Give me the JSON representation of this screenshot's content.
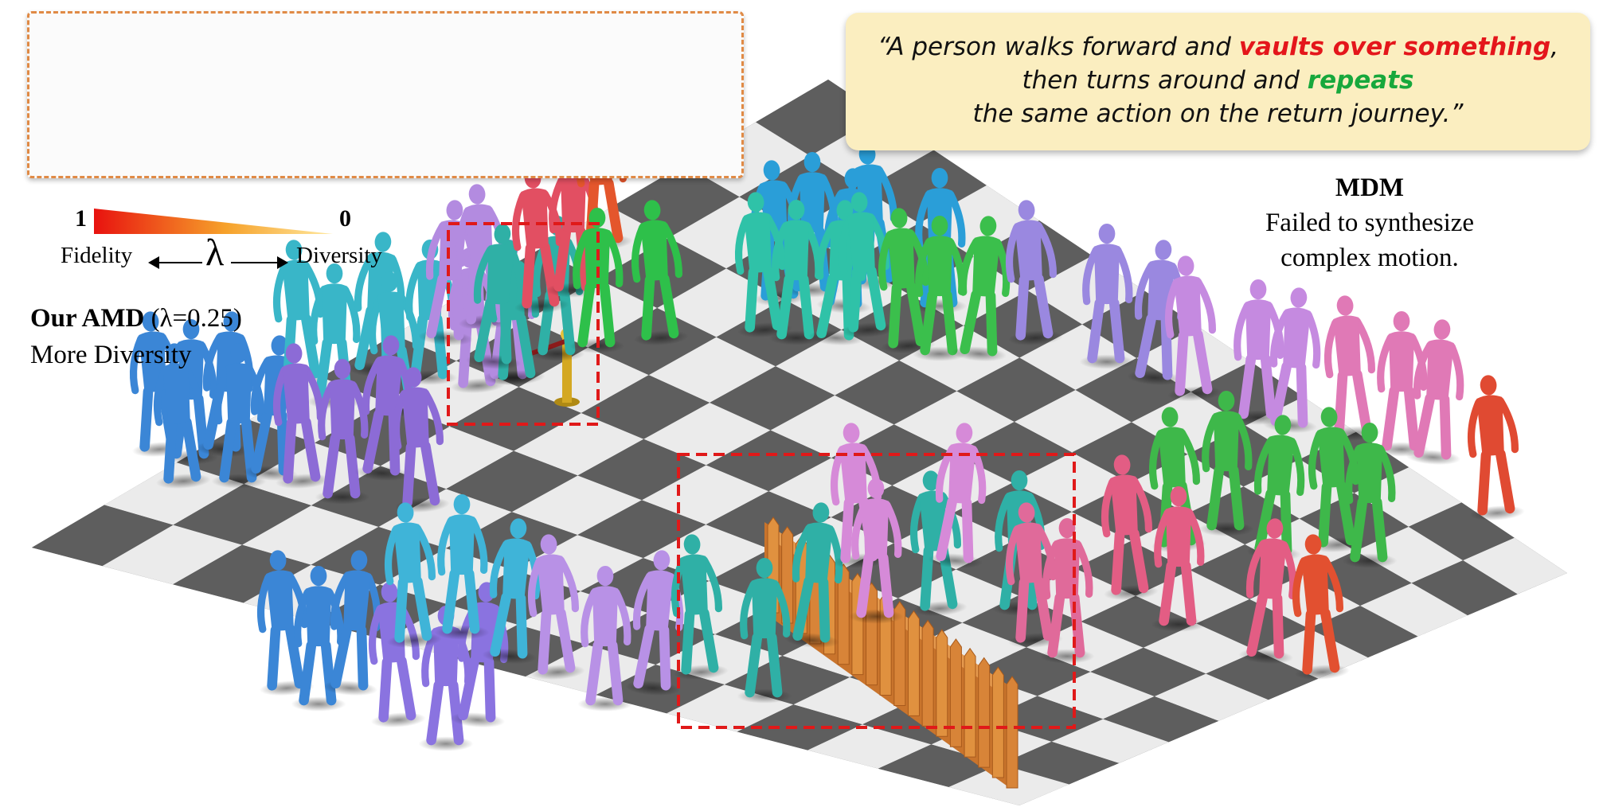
{
  "legend": {
    "value_left": "1",
    "value_right": "0",
    "fidelity_label": "Fidelity",
    "lambda_symbol": "λ",
    "diversity_label": "Diversity",
    "gradient_colors": [
      "#e8120f",
      "#f6a12a",
      "#ffe9a0"
    ]
  },
  "left_caption": {
    "title_bold": "Our AMD",
    "title_param": " (λ=0.25)",
    "subtitle": "More Diversity"
  },
  "quote": {
    "line1_start": "“A person walks forward and ",
    "line1_red": "vaults over something",
    "line1_end": ",",
    "line2_start": "then turns around and ",
    "line2_green": "repeats",
    "line3": "the same action on the return journey.”"
  },
  "mdm": {
    "title": "MDM",
    "line1": "Failed to synthesize",
    "line2": "complex motion."
  },
  "colors": {
    "highlight_red": "#e4161b",
    "highlight_green": "#17a83c",
    "inset_border": "#e08a45",
    "dash_box": "#e01919",
    "quote_bg": "#fbeec0"
  }
}
